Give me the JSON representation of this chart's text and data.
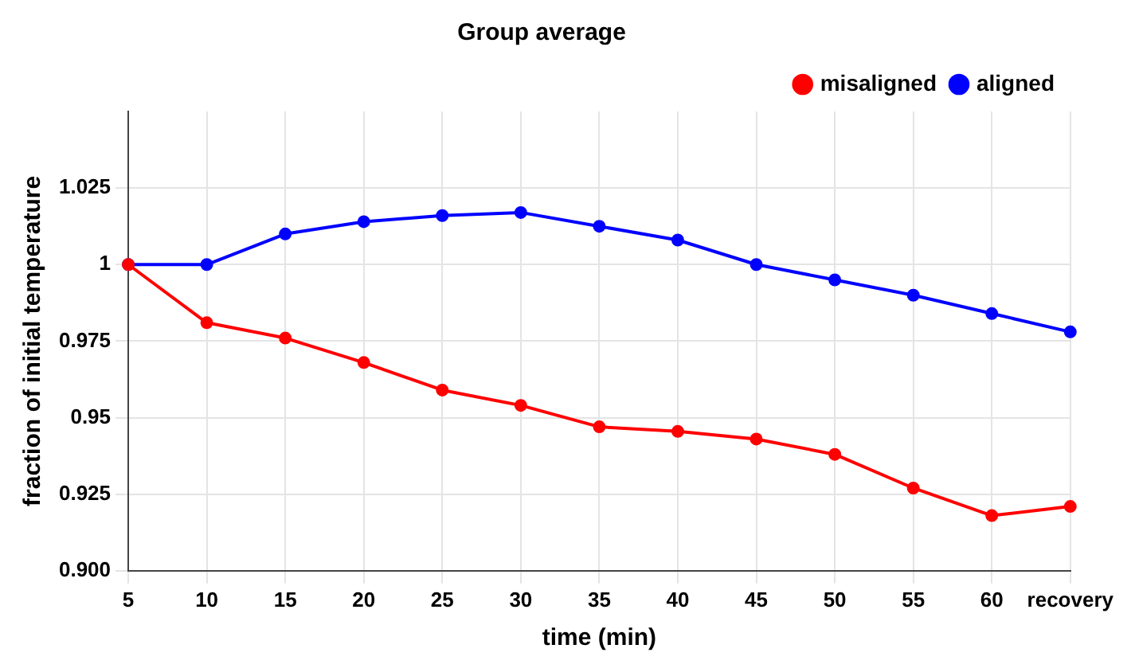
{
  "chart_data": {
    "type": "line",
    "title": "Group average",
    "xlabel": "time (min)",
    "ylabel": "fraction of initial temperature",
    "categories": [
      "5",
      "10",
      "15",
      "20",
      "25",
      "30",
      "35",
      "40",
      "45",
      "50",
      "55",
      "60",
      "recovery"
    ],
    "series": [
      {
        "name": "aligned",
        "color": "#0000ff",
        "values": [
          1.0,
          1.0,
          1.01,
          1.014,
          1.016,
          1.017,
          1.0125,
          1.008,
          1.0,
          0.995,
          0.99,
          0.984,
          0.978
        ]
      },
      {
        "name": "misaligned",
        "color": "#ff0000",
        "values": [
          1.0,
          0.981,
          0.976,
          0.968,
          0.959,
          0.954,
          0.947,
          0.9455,
          0.943,
          0.938,
          0.927,
          0.918,
          0.921
        ]
      }
    ],
    "ylim": [
      0.9,
      1.05
    ],
    "yticks": [
      {
        "value": 0.9,
        "label": "0.900"
      },
      0.925,
      0.95,
      0.975,
      1,
      1.025
    ],
    "grid": true,
    "legend": "top right",
    "marker": "circle",
    "line_style": "solid"
  }
}
